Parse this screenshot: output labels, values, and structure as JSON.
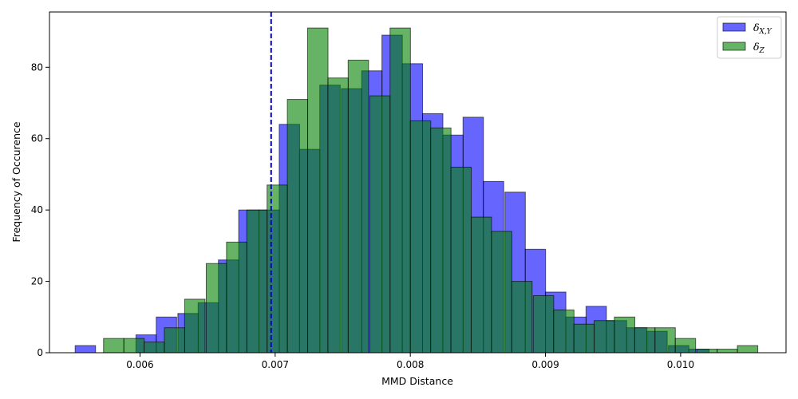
{
  "chart_data": {
    "type": "bar",
    "title": "",
    "xlabel": "MMD Distance",
    "ylabel": "Frequency of Occurence",
    "xlim": [
      0.00533,
      0.01078
    ],
    "ylim": [
      0,
      95.5
    ],
    "xticks": [
      0.006,
      0.007,
      0.008,
      0.009,
      0.01
    ],
    "xtick_labels": [
      "0.006",
      "0.007",
      "0.008",
      "0.009",
      "0.010"
    ],
    "yticks": [
      0,
      20,
      40,
      60,
      80
    ],
    "ytick_labels": [
      "0",
      "20",
      "40",
      "60",
      "80"
    ],
    "grid": false,
    "legend_position": "top-right",
    "reference_line": {
      "x": 0.00697,
      "color": "#0000cc",
      "style": "dashed"
    },
    "series": [
      {
        "name": "δX,Y",
        "legend": {
          "base": "δ",
          "sub": "X,Y"
        },
        "color": "#0000ff",
        "alpha": 0.6,
        "bin_width": 0.000151,
        "bin_starts": [
          0.00552,
          0.00567,
          0.00582,
          0.00597,
          0.00612,
          0.00628,
          0.00643,
          0.00658,
          0.00673,
          0.00688,
          0.00703,
          0.00718,
          0.00733,
          0.00749,
          0.00764,
          0.00779,
          0.00794,
          0.00809,
          0.00824,
          0.00839,
          0.00854,
          0.0087,
          0.00885,
          0.009,
          0.00915,
          0.0093,
          0.00945,
          0.0096,
          0.00975,
          0.00991,
          0.01006,
          0.01021
        ],
        "values": [
          2,
          0,
          0,
          5,
          10,
          11,
          14,
          26,
          40,
          40,
          64,
          57,
          75,
          74,
          79,
          89,
          81,
          67,
          61,
          66,
          48,
          45,
          29,
          17,
          10,
          13,
          9,
          7,
          6,
          2,
          1,
          0
        ]
      },
      {
        "name": "δZ",
        "legend": {
          "base": "δ",
          "sub": "Z"
        },
        "color": "#008000",
        "alpha": 0.6,
        "bin_width": 0.000151,
        "bin_starts": [
          0.00573,
          0.00588,
          0.00603,
          0.00618,
          0.00633,
          0.00649,
          0.00664,
          0.00679,
          0.00694,
          0.00709,
          0.00724,
          0.00739,
          0.00754,
          0.0077,
          0.00785,
          0.008,
          0.00815,
          0.0083,
          0.00845,
          0.0086,
          0.00875,
          0.00891,
          0.00906,
          0.00921,
          0.00936,
          0.00951,
          0.00966,
          0.00981,
          0.00996,
          0.01012,
          0.01027,
          0.01042
        ],
        "values": [
          4,
          4,
          3,
          7,
          15,
          25,
          31,
          40,
          47,
          71,
          91,
          77,
          82,
          72,
          91,
          65,
          63,
          52,
          38,
          34,
          20,
          16,
          12,
          8,
          9,
          10,
          7,
          7,
          4,
          1,
          1,
          2
        ]
      }
    ]
  }
}
